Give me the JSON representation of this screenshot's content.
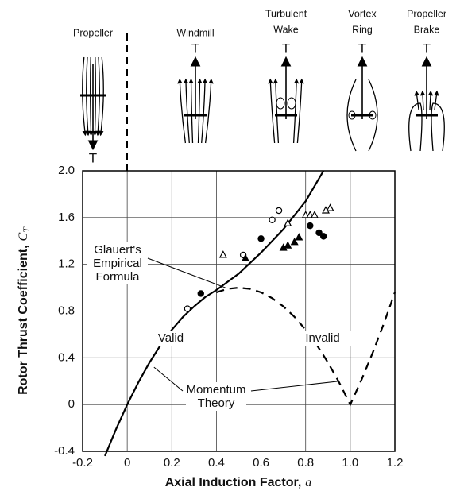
{
  "chart_data": {
    "type": "line",
    "xlabel": "Axial Induction Factor,",
    "xlabel_symbol": "a",
    "ylabel": "Rotor Thrust Coefficient,",
    "ylabel_symbol": "C",
    "ylabel_subscript": "T",
    "xlim": [
      -0.2,
      1.2
    ],
    "xticks": [
      -0.2,
      0,
      0.2,
      0.4,
      0.6,
      0.8,
      {
        "value": 1.0,
        "label": "1.0"
      },
      1.2
    ],
    "ylim": [
      -0.4,
      2.0
    ],
    "yticks": [
      -0.4,
      0,
      0.4,
      0.8,
      1.2,
      1.6,
      {
        "value": 2.0,
        "label": "2.0"
      }
    ],
    "grid": true,
    "series": [
      {
        "style": "solid",
        "color": "#000",
        "x": [
          -0.1,
          -0.05,
          0,
          0.05,
          0.1,
          0.15,
          0.2,
          0.25,
          0.3
        ],
        "values": [
          -0.44,
          -0.21,
          0,
          0.19,
          0.36,
          0.51,
          0.64,
          0.75,
          0.84
        ]
      },
      {
        "style": "dashed",
        "color": "#000",
        "x": [
          0.4,
          0.45,
          0.5,
          0.55,
          0.6,
          0.65,
          0.7,
          0.75,
          0.8,
          0.85,
          0.9,
          0.95,
          1.0,
          1.05,
          1.1,
          1.15,
          1.2
        ],
        "values": [
          0.96,
          0.99,
          1.0,
          0.99,
          0.96,
          0.91,
          0.84,
          0.75,
          0.64,
          0.51,
          0.36,
          0.19,
          0,
          0.21,
          0.44,
          0.69,
          0.96
        ]
      },
      {
        "style": "solid",
        "color": "#000",
        "x": [
          0.3,
          0.35,
          0.4,
          0.5,
          0.6,
          0.7,
          0.8,
          0.88
        ],
        "values": [
          0.84,
          0.92,
          0.98,
          1.12,
          1.3,
          1.5,
          1.74,
          2.0
        ]
      },
      {
        "style": "markers",
        "marker": "circle",
        "filled": false,
        "color": "#000",
        "x": [
          0.27,
          0.52,
          0.65,
          0.68
        ],
        "values": [
          0.82,
          1.28,
          1.58,
          1.66
        ]
      },
      {
        "style": "markers",
        "marker": "circle",
        "filled": true,
        "color": "#000",
        "x": [
          0.33,
          0.6,
          0.82,
          0.86,
          0.88
        ],
        "values": [
          0.95,
          1.42,
          1.53,
          1.47,
          1.44
        ]
      },
      {
        "style": "markers",
        "marker": "triangle",
        "filled": false,
        "color": "#000",
        "x": [
          0.43,
          0.72,
          0.8,
          0.82,
          0.84,
          0.89,
          0.91
        ],
        "values": [
          1.28,
          1.55,
          1.62,
          1.62,
          1.62,
          1.66,
          1.68
        ]
      },
      {
        "style": "markers",
        "marker": "triangle",
        "filled": true,
        "color": "#000",
        "x": [
          0.53,
          0.7,
          0.72,
          0.75,
          0.77
        ],
        "values": [
          1.25,
          1.34,
          1.36,
          1.39,
          1.43
        ]
      }
    ],
    "annotations": [
      {
        "lines": [
          "Glauert's",
          "Empirical",
          "Formula"
        ]
      },
      {
        "lines": [
          "Valid"
        ]
      },
      {
        "lines": [
          "Invalid"
        ]
      },
      {
        "lines": [
          "Momentum",
          "Theory"
        ]
      }
    ]
  },
  "flow_states": [
    {
      "label": [
        "Propeller"
      ],
      "thrust": "T"
    },
    {
      "label": [
        "Windmill"
      ],
      "thrust": "T"
    },
    {
      "label": [
        "Turbulent",
        "Wake"
      ],
      "thrust": "T"
    },
    {
      "label": [
        "Vortex",
        "Ring"
      ],
      "thrust": "T"
    },
    {
      "label": [
        "Propeller",
        "Brake"
      ],
      "thrust": "T"
    }
  ]
}
